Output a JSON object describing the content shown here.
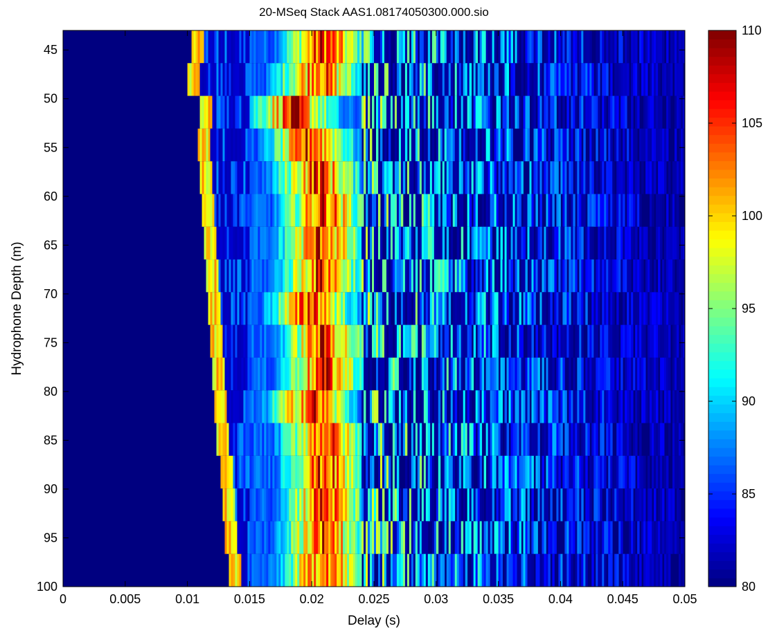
{
  "chart_data": {
    "type": "heatmap",
    "title": "20-MSeq Stack AAS1.08174050300.000.sio",
    "xlabel": "Delay (s)",
    "ylabel": "Hydrophone Depth (m)",
    "xlim": [
      0,
      0.05
    ],
    "ylim": [
      43,
      100
    ],
    "x_ticks": [
      0,
      0.005,
      0.01,
      0.015,
      0.02,
      0.025,
      0.03,
      0.035,
      0.04,
      0.045,
      0.05
    ],
    "x_tick_labels": [
      "0",
      "0.005",
      "0.01",
      "0.015",
      "0.02",
      "0.025",
      "0.03",
      "0.035",
      "0.04",
      "0.045",
      "0.05"
    ],
    "y_ticks": [
      45,
      50,
      55,
      60,
      65,
      70,
      75,
      80,
      85,
      90,
      95,
      100
    ],
    "y_tick_labels": [
      "45",
      "50",
      "55",
      "60",
      "65",
      "70",
      "75",
      "80",
      "85",
      "90",
      "95",
      "100"
    ],
    "y_reversed": true,
    "colormap": "jet",
    "clim": [
      80,
      110
    ],
    "colorbar_ticks": [
      80,
      85,
      90,
      95,
      100,
      105,
      110
    ],
    "colorbar_tick_labels": [
      "80",
      "85",
      "90",
      "95",
      "100",
      "105",
      "110"
    ],
    "grid": false,
    "depths": [
      43,
      46.5,
      50,
      53.5,
      57,
      60.5,
      64,
      67.5,
      71,
      74.5,
      78,
      81.5,
      85,
      88.5,
      92,
      95.5,
      99
    ],
    "arrival_onset_s": [
      0.0105,
      0.0102,
      0.0112,
      0.011,
      0.0112,
      0.0113,
      0.0115,
      0.0117,
      0.0118,
      0.012,
      0.0122,
      0.0123,
      0.0125,
      0.0128,
      0.013,
      0.0132,
      0.0135
    ],
    "peak_delay_s": [
      0.021,
      0.0205,
      0.0185,
      0.02,
      0.0205,
      0.021,
      0.0208,
      0.0208,
      0.02,
      0.021,
      0.021,
      0.02,
      0.021,
      0.021,
      0.021,
      0.021,
      0.021
    ],
    "peak_level": 110,
    "background_level": 80
  },
  "colors": {
    "jet_low": "#00007f",
    "jet_high": "#7f0000"
  }
}
